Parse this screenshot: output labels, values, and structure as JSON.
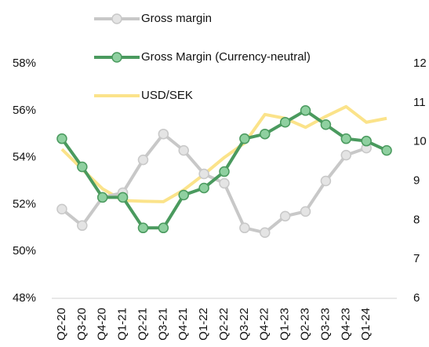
{
  "chart_data": {
    "type": "line",
    "categories": [
      "Q2-20",
      "Q3-20",
      "Q4-20",
      "Q1-21",
      "Q2-21",
      "Q3-21",
      "Q4-21",
      "Q1-22",
      "Q2-22",
      "Q3-22",
      "Q4-22",
      "Q1-23",
      "Q2-23",
      "Q3-23",
      "Q4-23",
      "Q1-24",
      null
    ],
    "series": [
      {
        "name": "Gross margin",
        "color": "#c8c8c8",
        "marker_color": "#e4e4e4",
        "values": [
          51.8,
          51.1,
          52.3,
          52.5,
          53.9,
          55.0,
          54.3,
          53.3,
          52.9,
          51.0,
          50.8,
          51.5,
          51.7,
          53.0,
          54.1,
          54.4,
          null
        ]
      },
      {
        "name": "Gross Margin (Currency-neutral)",
        "color": "#4a9a5e",
        "marker_color": "#8fd0a0",
        "values": [
          54.8,
          53.6,
          52.3,
          52.3,
          51.0,
          51.0,
          52.4,
          52.7,
          53.4,
          54.8,
          55.0,
          55.5,
          56.0,
          55.4,
          54.8,
          54.7,
          54.3
        ]
      },
      {
        "name": "USD/SEK",
        "color": "#fbe38a",
        "axis": "y2",
        "values": [
          9.81,
          9.3,
          8.8,
          8.5,
          8.48,
          8.47,
          8.77,
          9.17,
          9.6,
          9.97,
          10.7,
          10.6,
          10.37,
          10.65,
          10.9,
          10.5,
          10.6
        ]
      }
    ],
    "ylim": [
      48,
      58
    ],
    "yticks": [
      {
        "value": 48,
        "label": "48%"
      },
      {
        "value": 50,
        "label": "50%"
      },
      {
        "value": 52,
        "label": "52%"
      },
      {
        "value": 54,
        "label": "54%"
      },
      {
        "value": 56,
        "label": "56%"
      },
      {
        "value": 58,
        "label": "58%"
      }
    ],
    "y2lim": [
      6,
      12
    ],
    "y2ticks": [
      6,
      7,
      8,
      9,
      10,
      11,
      12
    ]
  }
}
